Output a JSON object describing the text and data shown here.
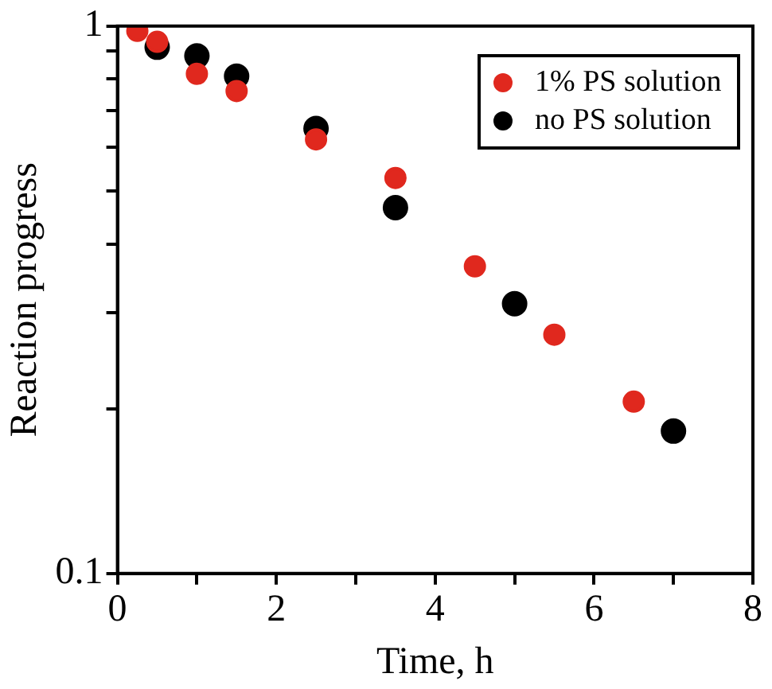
{
  "chart_data": {
    "type": "scatter",
    "xlabel": "Time, h",
    "ylabel": "Reaction progress",
    "log": "y",
    "xlim": [
      0,
      8
    ],
    "ylim": [
      0.1,
      1
    ],
    "xticks": [
      0,
      {
        "value": 1,
        "label": null
      },
      2,
      {
        "value": 3,
        "label": null
      },
      4,
      {
        "value": 5,
        "label": null
      },
      6,
      {
        "value": 7,
        "label": null
      },
      8
    ],
    "yticks": [
      0.1,
      {
        "value": 0.2,
        "label": null
      },
      {
        "value": 0.3,
        "label": null
      },
      {
        "value": 0.4,
        "label": null
      },
      {
        "value": 0.5,
        "label": null
      },
      {
        "value": 0.6,
        "label": null
      },
      {
        "value": 0.7,
        "label": null
      },
      {
        "value": 0.8,
        "label": null
      },
      {
        "value": 0.9,
        "label": null
      },
      1
    ],
    "marker": "circle",
    "legend": "top right",
    "grid": false,
    "series": [
      {
        "name": "1% PS solution",
        "color": "#e0281e",
        "x": [
          0.25,
          0.5,
          1,
          1.5,
          2.5,
          3.5,
          4.5,
          5.5,
          6.5
        ],
        "values": [
          0.98,
          0.936,
          0.818,
          0.761,
          0.621,
          0.528,
          0.364,
          0.273,
          0.206
        ]
      },
      {
        "name": "no PS solution",
        "color": "#000000",
        "x": [
          0.5,
          1,
          1.5,
          2.5,
          3.5,
          5,
          7
        ],
        "values": [
          0.915,
          0.882,
          0.81,
          0.65,
          0.466,
          0.311,
          0.182
        ]
      }
    ]
  }
}
